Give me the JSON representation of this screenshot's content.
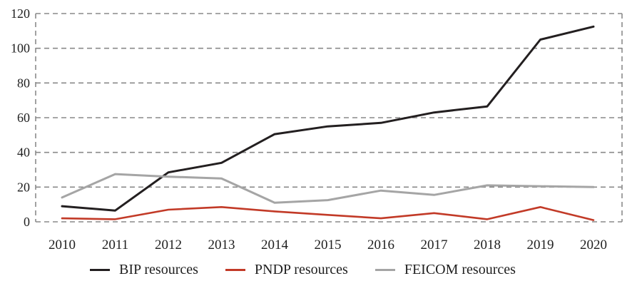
{
  "chart_data": {
    "type": "line",
    "x": [
      "2010",
      "2011",
      "2012",
      "2013",
      "2014",
      "2015",
      "2016",
      "2017",
      "2018",
      "2019",
      "2020"
    ],
    "series": [
      {
        "name": "BIP resources",
        "color": "#231f20",
        "width": 3,
        "values": [
          9,
          6.5,
          28.5,
          34,
          50.5,
          55,
          57,
          63,
          66.5,
          105,
          112.5
        ]
      },
      {
        "name": "PNDP resources",
        "color": "#c23a27",
        "width": 2.6,
        "values": [
          2,
          1.5,
          7,
          8.5,
          6,
          4,
          2,
          5,
          1.5,
          8.5,
          1
        ]
      },
      {
        "name": "FEICOM resources",
        "color": "#a5a5a5",
        "width": 3,
        "values": [
          14,
          27.5,
          26,
          25,
          11,
          12.5,
          18,
          15.5,
          21,
          20.5,
          20
        ]
      }
    ],
    "title": "",
    "xlabel": "",
    "ylabel": "",
    "ylim": [
      0,
      120
    ],
    "yticks": [
      0,
      20,
      40,
      60,
      80,
      100,
      120
    ],
    "grid": "horizontal-dashed",
    "border": "dashed",
    "grid_color": "#8a8a8a",
    "legend_position": "bottom"
  }
}
